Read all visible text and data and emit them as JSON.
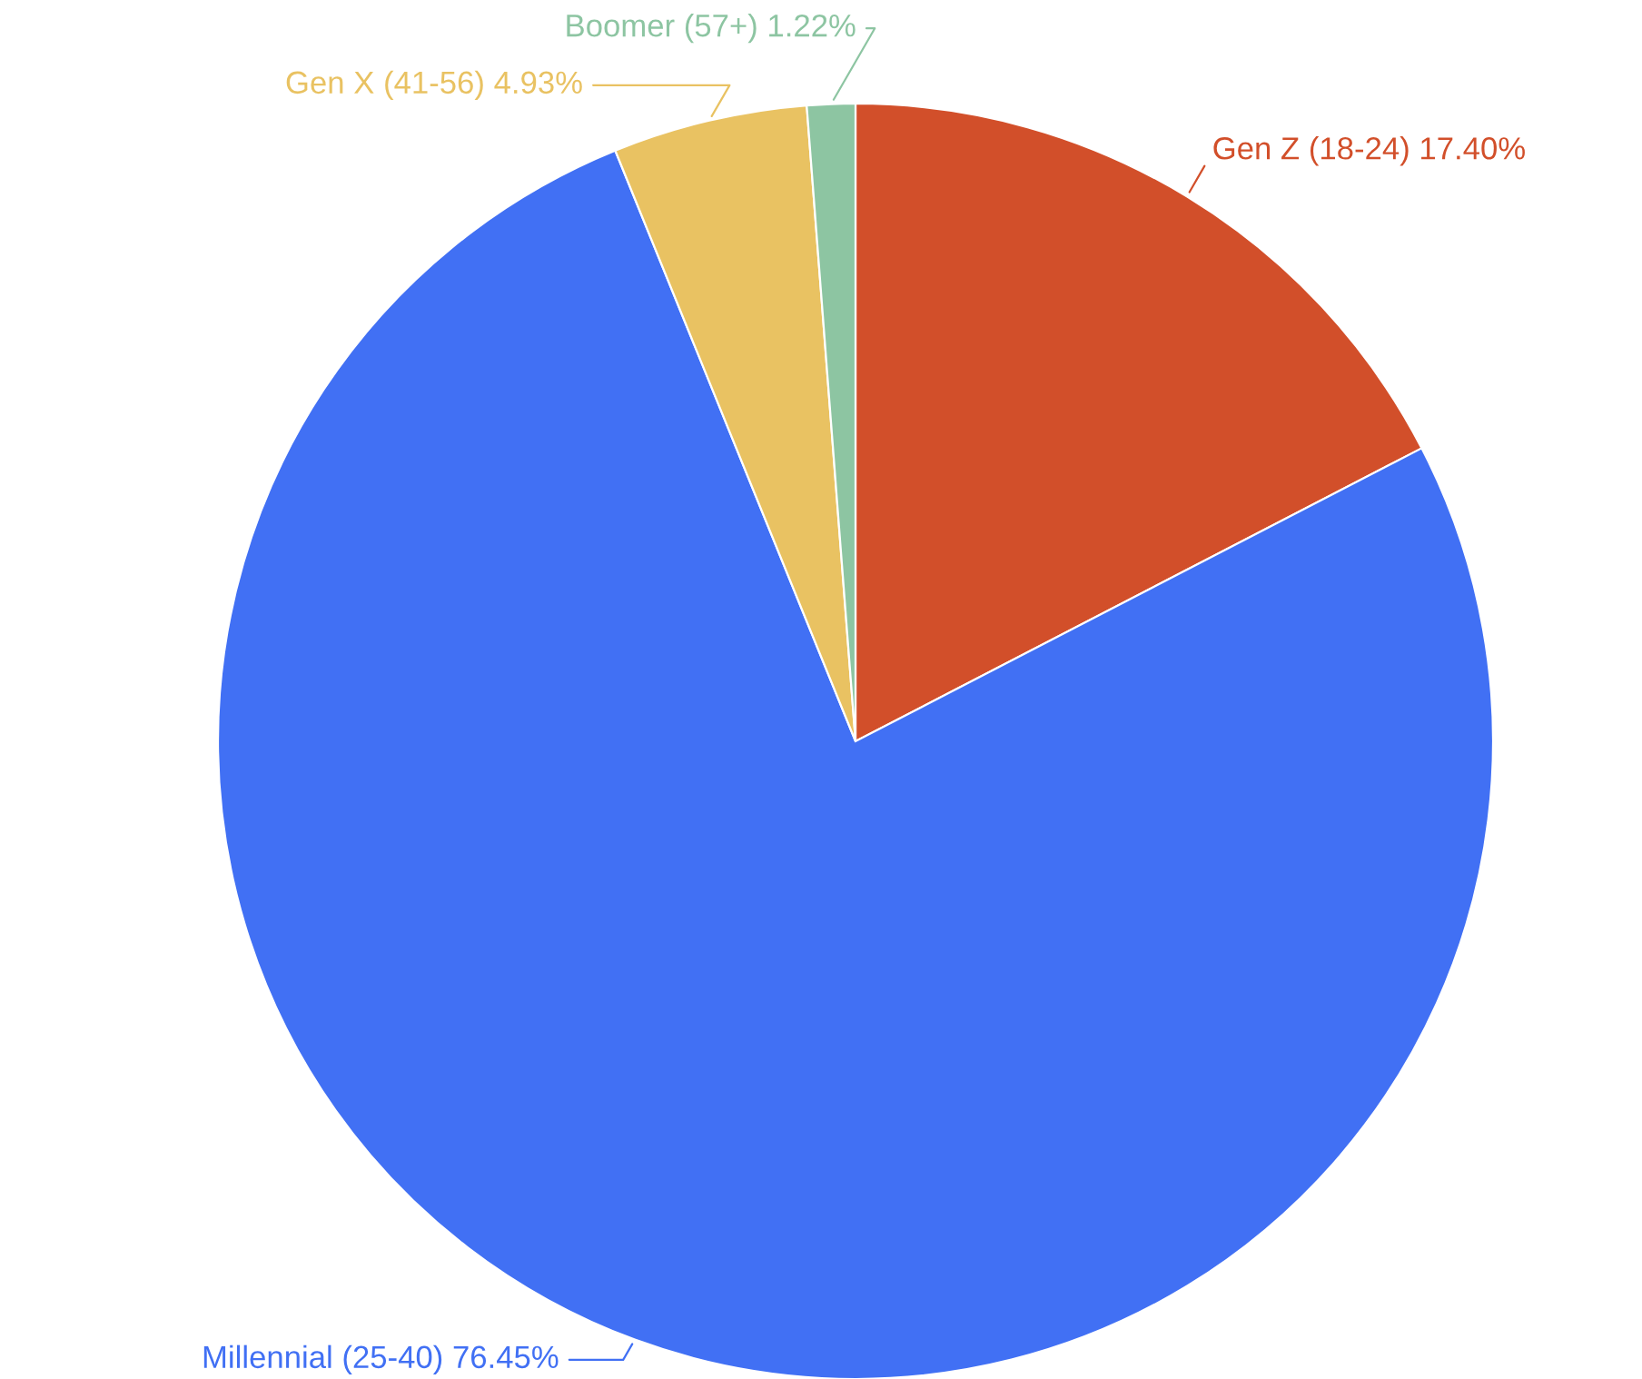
{
  "chart_data": {
    "type": "pie",
    "categories": [
      "Gen Z (18-24)",
      "Millennial (25-40)",
      "Gen X (41-56)",
      "Boomer (57+)"
    ],
    "values": [
      17.4,
      76.45,
      4.93,
      1.22
    ],
    "value_labels": [
      "17.40%",
      "76.45%",
      "4.93%",
      "1.22%"
    ],
    "colors": [
      "#d24f2a",
      "#4170f4",
      "#e9c262",
      "#8dc5a2"
    ]
  }
}
